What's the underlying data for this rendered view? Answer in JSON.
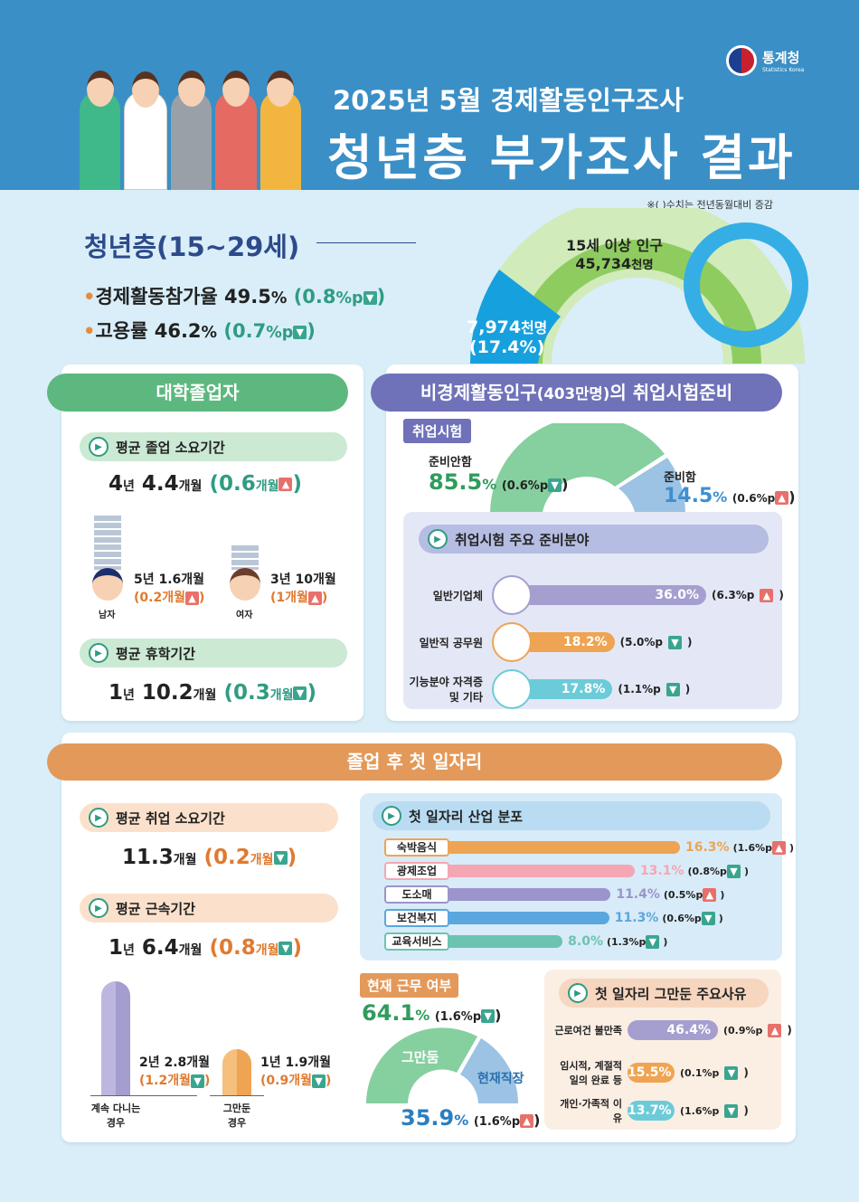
{
  "header": {
    "line1": "2025년 5월 경제활동인구조사",
    "line2": "청년층 부가조사 결과",
    "logo": {
      "name": "통계청",
      "sub": "Statistics Korea"
    }
  },
  "note": "※( )수치는 전년동월대비 증감",
  "youth": {
    "title": "청년층(15~29세)",
    "participation": {
      "label": "경제활동참가율",
      "value": "49.5",
      "unit": "%",
      "change": "0.8",
      "change_unit": "%p",
      "direction": "down"
    },
    "employment": {
      "label": "고용률",
      "value": "46.2",
      "unit": "%",
      "change": "0.7",
      "change_unit": "%p",
      "direction": "down"
    },
    "population": {
      "label": "15세 이상 인구",
      "value": "45,734",
      "unit": "천명"
    },
    "youth_pop": {
      "value": "7,974",
      "unit": "천명",
      "share": "(17.4%)",
      "share_pct": 17.4
    }
  },
  "graduates": {
    "title": "대학졸업자",
    "grad_period": {
      "label": "평균 졸업 소요기간",
      "years": "4",
      "y": "년",
      "months": "4.4",
      "m": "개월",
      "change": "0.6",
      "change_unit": "개월",
      "direction": "up"
    },
    "male": {
      "label": "남자",
      "value": "5년 1.6개월",
      "change": "0.2개월",
      "direction": "up"
    },
    "female": {
      "label": "여자",
      "value": "3년 10개월",
      "change": "1개월",
      "direction": "up"
    },
    "leave": {
      "label": "평균 휴학기간",
      "years": "1",
      "y": "년",
      "months": "10.2",
      "m": "개월",
      "change": "0.3",
      "change_unit": "개월",
      "direction": "down"
    }
  },
  "exam": {
    "title": "비경제활동인구",
    "title_sub": "(403만명)",
    "title_end": "의 취업시험준비",
    "tag": "취업시험",
    "not_prep": {
      "label": "준비안함",
      "value": "85.5",
      "unit": "%",
      "change": "(0.6%p",
      "direction": "down"
    },
    "prep": {
      "label": "준비함",
      "value": "14.5",
      "unit": "%",
      "change": "(0.6%p",
      "direction": "up"
    },
    "fields_title": "취업시험 주요 준비분야",
    "fields": [
      {
        "label": "일반기업체",
        "value": 36.0,
        "text": "36.0%",
        "change": "(6.3%p",
        "direction": "up",
        "color": "#a59fd0"
      },
      {
        "label": "일반직 공무원",
        "value": 18.2,
        "text": "18.2%",
        "change": "(5.0%p",
        "direction": "down",
        "color": "#eea452"
      },
      {
        "label": "기능분야 자격증 및 기타",
        "value": 17.8,
        "text": "17.8%",
        "change": "(1.1%p",
        "direction": "down",
        "color": "#6ccbd8"
      }
    ]
  },
  "firstjob": {
    "title": "졸업 후 첫 일자리",
    "search": {
      "label": "평균 취업 소요기간",
      "months": "11.3",
      "m": "개월",
      "change": "0.2",
      "change_unit": "개월",
      "direction": "down"
    },
    "tenure": {
      "label": "평균 근속기간",
      "years": "1",
      "y": "년",
      "months": "6.4",
      "m": "개월",
      "change": "0.8",
      "change_unit": "개월",
      "direction": "down"
    },
    "staying": {
      "label": "계속 다니는 경우",
      "value": "2년 2.8개월",
      "change": "(1.2개월",
      "direction": "down"
    },
    "quit": {
      "label": "그만둔 경우",
      "value": "1년 1.9개월",
      "change": "(0.9개월",
      "direction": "down"
    },
    "industry_title": "첫 일자리 산업 분포",
    "industries": [
      {
        "label": "숙박음식",
        "value": 16.3,
        "text": "16.3%",
        "change": "(1.6%p",
        "direction": "up",
        "color": "#eea452"
      },
      {
        "label": "광제조업",
        "value": 13.1,
        "text": "13.1%",
        "change": "(0.8%p",
        "direction": "down",
        "color": "#f4a6b4"
      },
      {
        "label": "도소매",
        "value": 11.4,
        "text": "11.4%",
        "change": "(0.5%p",
        "direction": "up",
        "color": "#9c94cc"
      },
      {
        "label": "보건복지",
        "value": 11.3,
        "text": "11.3%",
        "change": "(0.6%p",
        "direction": "down",
        "color": "#5aa6de"
      },
      {
        "label": "교육서비스",
        "value": 8.0,
        "text": "8.0%",
        "change": "(1.3%p",
        "direction": "down",
        "color": "#6cc3b0"
      }
    ],
    "current": {
      "tag": "현재 근무 여부",
      "quit": {
        "label": "그만둠",
        "value": "64.1",
        "unit": "%",
        "change": "(1.6%p",
        "direction": "down"
      },
      "stay": {
        "label": "현재직장",
        "value": "35.9",
        "unit": "%",
        "change": "(1.6%p",
        "direction": "up"
      }
    },
    "reasons_title": "첫 일자리 그만둔 주요사유",
    "reasons": [
      {
        "label": "근로여건 불만족",
        "value": 46.4,
        "text": "46.4%",
        "change": "(0.9%p",
        "direction": "up",
        "color": "#a59fd0"
      },
      {
        "label": "임시적, 계절적 일의 완료 등",
        "value": 15.5,
        "text": "15.5%",
        "change": "(0.1%p",
        "direction": "down",
        "color": "#eea452"
      },
      {
        "label": "개인·가족적 이유",
        "value": 13.7,
        "text": "13.7%",
        "change": "(1.6%p",
        "direction": "down",
        "color": "#6ccbd8"
      }
    ]
  },
  "colors": {
    "header": "#3a8fc6",
    "up": "#e8706a",
    "down": "#3aa58f",
    "green": "#2f9c5c",
    "orange": "#e07a30"
  }
}
